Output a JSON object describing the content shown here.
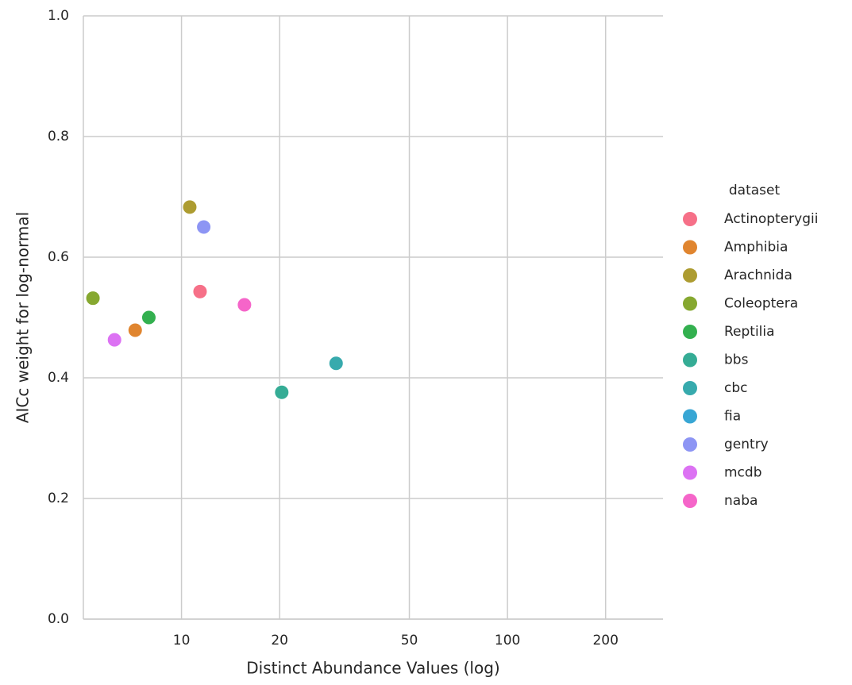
{
  "chart_data": {
    "type": "scatter",
    "xlabel": "Distinct Abundance Values (log)",
    "ylabel": "AICc weight for log-normal",
    "legend_title": "dataset",
    "legend_position": "right",
    "xscale": "log",
    "grid": true,
    "xlim": [
      5,
      300
    ],
    "ylim": [
      0,
      1
    ],
    "xticks": [
      10,
      20,
      50,
      100,
      200
    ],
    "yticks": [
      {
        "value": 0,
        "label": "0.0"
      },
      0.2,
      0.4,
      0.6,
      0.8,
      {
        "value": 1,
        "label": "1.0"
      }
    ],
    "series": [
      {
        "name": "Actinopterygii",
        "color": "#f67088",
        "x": [
          11.4
        ],
        "values": [
          0.543
        ]
      },
      {
        "name": "Amphibia",
        "color": "#e0852f",
        "x": [
          7.21
        ],
        "values": [
          0.479
        ]
      },
      {
        "name": "Arachnida",
        "color": "#ad9c31",
        "x": [
          10.6
        ],
        "values": [
          0.683
        ]
      },
      {
        "name": "Coleoptera",
        "color": "#86a830",
        "x": [
          5.35
        ],
        "values": [
          0.532
        ]
      },
      {
        "name": "Reptilia",
        "color": "#33b04f",
        "x": [
          7.94
        ],
        "values": [
          0.5
        ]
      },
      {
        "name": "bbs",
        "color": "#35ac95",
        "x": [
          20.3
        ],
        "values": [
          0.376
        ]
      },
      {
        "name": "cbc",
        "color": "#37aaad",
        "x": [
          29.8
        ],
        "values": [
          0.424
        ]
      },
      {
        "name": "fia",
        "color": "#38a6d4",
        "x": [
          null
        ],
        "values": [
          null
        ]
      },
      {
        "name": "gentry",
        "color": "#8d95f4",
        "x": [
          11.7
        ],
        "values": [
          0.65
        ]
      },
      {
        "name": "mcdb",
        "color": "#dc72f3",
        "x": [
          6.23
        ],
        "values": [
          0.463
        ]
      },
      {
        "name": "naba",
        "color": "#f565c9",
        "x": [
          15.6
        ],
        "values": [
          0.521
        ]
      }
    ]
  }
}
